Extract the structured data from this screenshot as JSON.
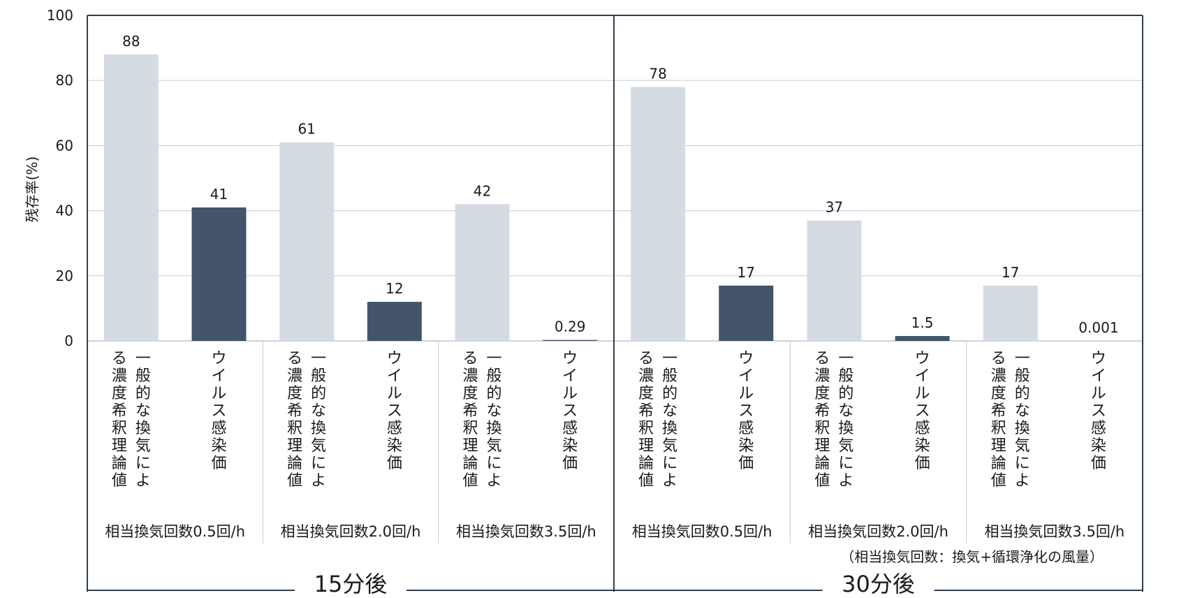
{
  "chart_data": {
    "type": "bar",
    "ylabel": "残存率(%)",
    "ylim": [
      0,
      100
    ],
    "yticks": [
      "0",
      "20",
      "40",
      "60",
      "80",
      "100"
    ],
    "grid": true,
    "bar_labels": [
      "一般的な換気による濃度希釈理論値",
      "ウイルス感染価"
    ],
    "colors": {
      "theory": "#d5dbe3",
      "virus": "#44546a"
    },
    "sections": [
      {
        "label": "15分後",
        "groups": [
          {
            "label": "相当換気回数0.5回/h",
            "values": [
              88,
              41
            ],
            "value_labels": [
              "88",
              "41"
            ]
          },
          {
            "label": "相当換気回数2.0回/h",
            "values": [
              61,
              12
            ],
            "value_labels": [
              "61",
              "12"
            ]
          },
          {
            "label": "相当換気回数3.5回/h",
            "values": [
              42,
              0.29
            ],
            "value_labels": [
              "42",
              "0.29"
            ]
          }
        ]
      },
      {
        "label": "30分後",
        "groups": [
          {
            "label": "相当換気回数0.5回/h",
            "values": [
              78,
              17
            ],
            "value_labels": [
              "78",
              "17"
            ]
          },
          {
            "label": "相当換気回数2.0回/h",
            "values": [
              37,
              1.5
            ],
            "value_labels": [
              "37",
              "1.5"
            ]
          },
          {
            "label": "相当換気回数3.5回/h",
            "values": [
              17,
              0.001
            ],
            "value_labels": [
              "17",
              "0.001"
            ]
          }
        ]
      }
    ],
    "note": "（相当換気回数：換気+循環浄化の風量）"
  }
}
